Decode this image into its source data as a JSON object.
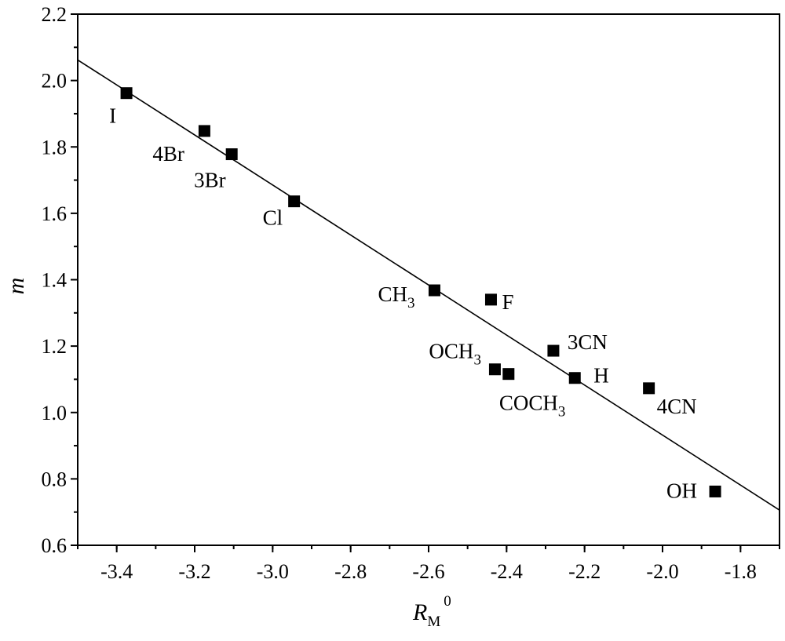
{
  "chart_data": {
    "type": "scatter",
    "xlabel": {
      "main": "R",
      "sub": "M",
      "sup": "0"
    },
    "ylabel": "m",
    "xlim": [
      -3.5,
      -1.7
    ],
    "ylim": [
      0.6,
      2.2
    ],
    "xticks": [
      -3.4,
      -3.2,
      -3.0,
      -2.8,
      -2.6,
      -2.4,
      -2.2,
      -2.0,
      -1.8
    ],
    "xtick_labels": [
      "-3.4",
      "-3.2",
      "-3.0",
      "-2.8",
      "-2.6",
      "-2.4",
      "-2.2",
      "-2.0",
      "-1.8"
    ],
    "yticks": [
      0.6,
      0.8,
      1.0,
      1.2,
      1.4,
      1.6,
      1.8,
      2.0,
      2.2
    ],
    "ytick_labels": [
      "0.6",
      "0.8",
      "1.0",
      "1.2",
      "1.4",
      "1.6",
      "1.8",
      "2.0",
      "2.2"
    ],
    "points": [
      {
        "label": "I",
        "x": -3.375,
        "y": 1.962
      },
      {
        "label": "4Br",
        "x": -3.175,
        "y": 1.848
      },
      {
        "label": "3Br",
        "x": -3.105,
        "y": 1.778
      },
      {
        "label": "Cl",
        "x": -2.945,
        "y": 1.636
      },
      {
        "label": "CH",
        "label_sub": "3",
        "x": -2.585,
        "y": 1.368
      },
      {
        "label": "F",
        "x": -2.44,
        "y": 1.34
      },
      {
        "label": "3CN",
        "x": -2.28,
        "y": 1.186
      },
      {
        "label": "OCH",
        "label_sub": "3",
        "x": -2.43,
        "y": 1.13
      },
      {
        "label": "COCH",
        "label_sub": "3",
        "x": -2.395,
        "y": 1.116
      },
      {
        "label": "H",
        "x": -2.225,
        "y": 1.104
      },
      {
        "label": "4CN",
        "x": -2.035,
        "y": 1.073
      },
      {
        "label": "OH",
        "x": -1.865,
        "y": 0.762
      }
    ],
    "fit_line": {
      "x": [
        -3.5,
        -1.7
      ],
      "y": [
        2.062,
        0.706
      ]
    }
  }
}
